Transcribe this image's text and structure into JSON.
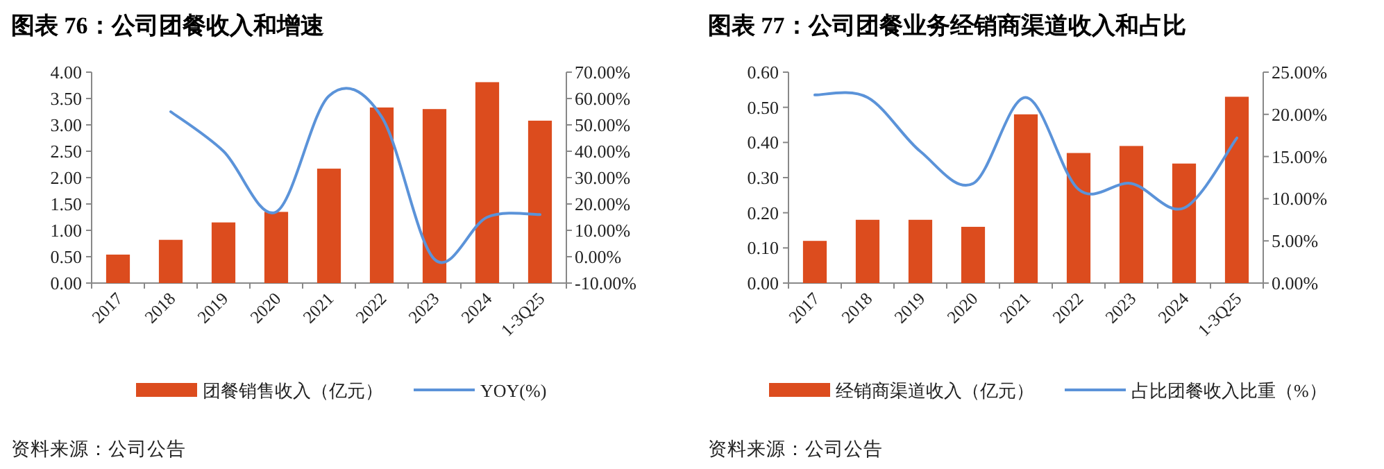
{
  "chart_data": [
    {
      "type": "bar",
      "title": "图表 76：公司团餐收入和增速",
      "categories": [
        "2017",
        "2018",
        "2019",
        "2020",
        "2021",
        "2022",
        "2023",
        "2024",
        "1-3Q25"
      ],
      "series": [
        {
          "name": "团餐销售收入（亿元）",
          "type": "bar",
          "color": "#dc4c1e",
          "values": [
            0.54,
            0.82,
            1.15,
            1.35,
            2.17,
            3.33,
            3.3,
            3.81,
            3.08
          ]
        },
        {
          "name": "YOY(%)",
          "type": "line",
          "axis": "y2",
          "color": "#5b93d9",
          "values": [
            null,
            55,
            40,
            17,
            61,
            53,
            -1,
            15,
            16
          ]
        }
      ],
      "ylim": [
        0,
        4
      ],
      "yticks": [
        {
          "value": 0,
          "label": "0.00"
        },
        {
          "value": 0.5,
          "label": "0.50"
        },
        {
          "value": 1,
          "label": "1.00"
        },
        {
          "value": 1.5,
          "label": "1.50"
        },
        {
          "value": 2,
          "label": "2.00"
        },
        {
          "value": 2.5,
          "label": "2.50"
        },
        {
          "value": 3,
          "label": "3.00"
        },
        {
          "value": 3.5,
          "label": "3.50"
        },
        {
          "value": 4,
          "label": "4.00"
        }
      ],
      "y2lim": [
        -10,
        70
      ],
      "y2ticks": [
        {
          "value": -10,
          "label": "-10.00%"
        },
        {
          "value": 0,
          "label": "0.00%"
        },
        {
          "value": 10,
          "label": "10.00%"
        },
        {
          "value": 20,
          "label": "20.00%"
        },
        {
          "value": 30,
          "label": "30.00%"
        },
        {
          "value": 40,
          "label": "40.00%"
        },
        {
          "value": 50,
          "label": "50.00%"
        },
        {
          "value": 60,
          "label": "60.00%"
        },
        {
          "value": 70,
          "label": "70.00%"
        }
      ],
      "legend": "bottom",
      "annotations": [
        "资料来源：公司公告"
      ]
    },
    {
      "type": "bar",
      "title": "图表 77：公司团餐业务经销商渠道收入和占比",
      "categories": [
        "2017",
        "2018",
        "2019",
        "2020",
        "2021",
        "2022",
        "2023",
        "2024",
        "1-3Q25"
      ],
      "series": [
        {
          "name": "经销商渠道收入（亿元）",
          "type": "bar",
          "color": "#dc4c1e",
          "values": [
            0.12,
            0.18,
            0.18,
            0.16,
            0.48,
            0.37,
            0.39,
            0.34,
            0.53
          ]
        },
        {
          "name": "占比团餐收入比重（%）",
          "type": "line",
          "axis": "y2",
          "color": "#5b93d9",
          "values": [
            22.3,
            22,
            15.6,
            11.8,
            22,
            11.1,
            11.8,
            8.9,
            17.2
          ]
        }
      ],
      "ylim": [
        0,
        0.6
      ],
      "yticks": [
        {
          "value": 0,
          "label": "0.00"
        },
        {
          "value": 0.1,
          "label": "0.10"
        },
        {
          "value": 0.2,
          "label": "0.20"
        },
        {
          "value": 0.3,
          "label": "0.30"
        },
        {
          "value": 0.4,
          "label": "0.40"
        },
        {
          "value": 0.5,
          "label": "0.50"
        },
        {
          "value": 0.6,
          "label": "0.60"
        }
      ],
      "y2lim": [
        0,
        25
      ],
      "y2ticks": [
        {
          "value": 0,
          "label": "0.00%"
        },
        {
          "value": 5,
          "label": "5.00%"
        },
        {
          "value": 10,
          "label": "10.00%"
        },
        {
          "value": 15,
          "label": "15.00%"
        },
        {
          "value": 20,
          "label": "20.00%"
        },
        {
          "value": 25,
          "label": "25.00%"
        }
      ],
      "legend": "bottom",
      "annotations": [
        "资料来源：公司公告"
      ]
    }
  ]
}
